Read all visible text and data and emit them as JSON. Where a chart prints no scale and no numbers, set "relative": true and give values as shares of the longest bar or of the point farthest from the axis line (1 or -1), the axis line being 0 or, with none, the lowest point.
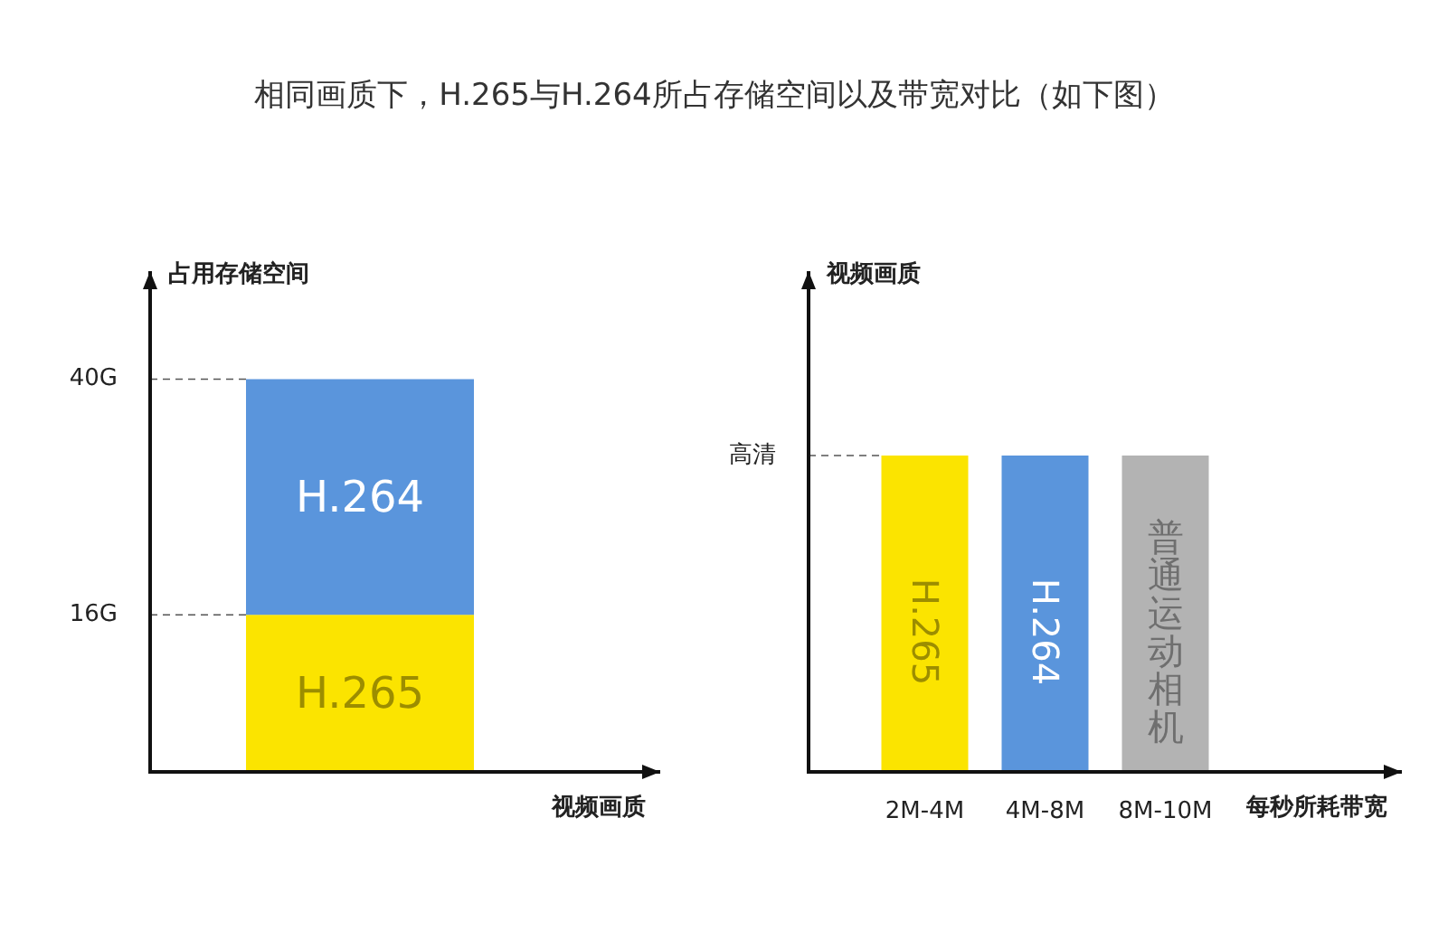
{
  "chart_data": [
    {
      "type": "bar",
      "title": "相同画质下，H.265与H.264所占存储空间以及带宽对比（如下图）",
      "ylabel": "占用存储空间",
      "xlabel": "视频画质",
      "categories": [
        null
      ],
      "stacked": true,
      "ylim": [
        0,
        51
      ],
      "yticks": [
        {
          "value": 16,
          "label": "16G"
        },
        {
          "value": 40,
          "label": "40G"
        }
      ],
      "ref_lines": [
        {
          "axis": "y",
          "value": 16,
          "line_style": "dashed"
        },
        {
          "axis": "y",
          "value": 40,
          "line_style": "dashed"
        }
      ],
      "series": [
        {
          "name": "H.265",
          "color": "#fbe400",
          "values": [
            16
          ]
        },
        {
          "name": "H.264",
          "color": "#5a95dc",
          "values": [
            24
          ]
        }
      ]
    },
    {
      "type": "bar",
      "ylabel": "视频画质",
      "xlabel": "每秒所耗带宽",
      "categories": [
        "2M-4M",
        "4M-8M",
        "8M-10M"
      ],
      "relative": true,
      "ref_lines": [
        {
          "axis": "y",
          "value": 1,
          "label": "高清",
          "line_style": "dashed"
        }
      ],
      "series": [
        {
          "name": "H.265",
          "color": "#fbe400",
          "values": [
            1,
            null,
            null
          ]
        },
        {
          "name": "H.264",
          "color": "#5a95dc",
          "values": [
            null,
            1,
            null
          ]
        },
        {
          "name": "普通运动相机",
          "color": "#b3b3b3",
          "values": [
            null,
            null,
            1
          ]
        }
      ]
    }
  ]
}
